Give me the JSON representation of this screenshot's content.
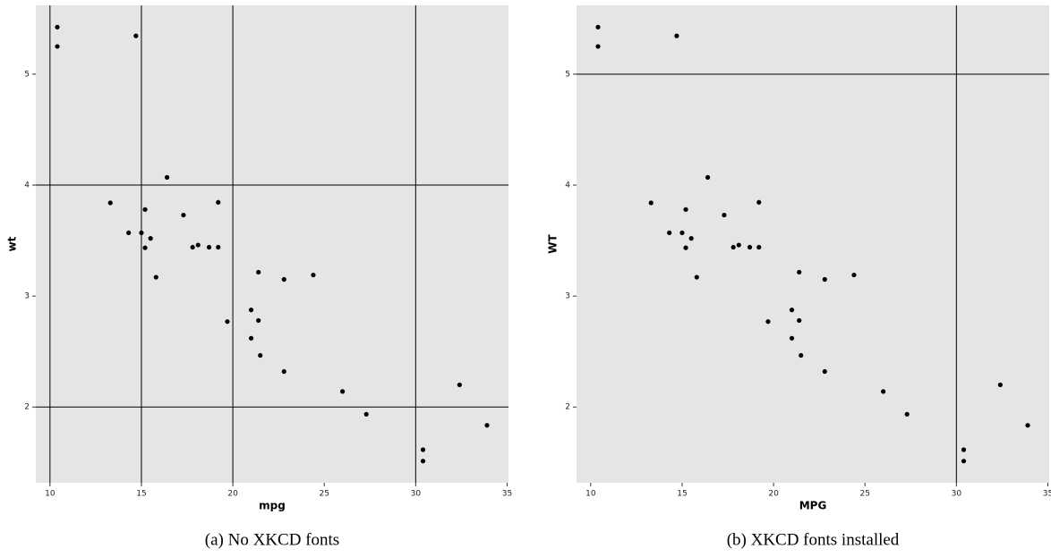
{
  "chart_data": [
    {
      "type": "scatter",
      "caption": "(a) No XKCD fonts",
      "xlabel": "mpg",
      "ylabel": "wt",
      "color": "#000000",
      "x": [
        21.0,
        21.0,
        22.8,
        21.4,
        18.7,
        18.1,
        14.3,
        24.4,
        22.8,
        19.2,
        17.8,
        16.4,
        17.3,
        15.2,
        10.4,
        10.4,
        14.7,
        32.4,
        30.4,
        33.9,
        21.5,
        15.5,
        15.2,
        13.3,
        19.2,
        27.3,
        26.0,
        30.4,
        15.8,
        19.7,
        15.0,
        21.4
      ],
      "values": [
        2.62,
        2.875,
        2.32,
        3.215,
        3.44,
        3.46,
        3.57,
        3.19,
        3.15,
        3.44,
        3.44,
        4.07,
        3.73,
        3.78,
        5.25,
        5.424,
        5.345,
        2.2,
        1.615,
        1.835,
        2.465,
        3.52,
        3.435,
        3.84,
        3.845,
        1.935,
        2.14,
        1.513,
        3.17,
        2.77,
        3.57,
        2.78
      ],
      "xlim": [
        9.225,
        35.075
      ],
      "ylim": [
        1.317,
        5.62
      ],
      "xticks": [
        10,
        15,
        20,
        25,
        30,
        35
      ],
      "yticks": [
        2,
        3,
        4,
        5
      ],
      "xgrid": [
        10,
        15,
        20,
        30
      ],
      "ygrid": [
        2,
        4
      ]
    },
    {
      "type": "scatter",
      "caption": "(b) XKCD fonts installed",
      "xlabel": "MPG",
      "ylabel": "WT",
      "color": "#000000",
      "x": [
        21.0,
        21.0,
        22.8,
        21.4,
        18.7,
        18.1,
        14.3,
        24.4,
        22.8,
        19.2,
        17.8,
        16.4,
        17.3,
        15.2,
        10.4,
        10.4,
        14.7,
        32.4,
        30.4,
        33.9,
        21.5,
        15.5,
        15.2,
        13.3,
        19.2,
        27.3,
        26.0,
        30.4,
        15.8,
        19.7,
        15.0,
        21.4
      ],
      "values": [
        2.62,
        2.875,
        2.32,
        3.215,
        3.44,
        3.46,
        3.57,
        3.19,
        3.15,
        3.44,
        3.44,
        4.07,
        3.73,
        3.78,
        5.25,
        5.424,
        5.345,
        2.2,
        1.615,
        1.835,
        2.465,
        3.52,
        3.435,
        3.84,
        3.845,
        1.935,
        2.14,
        1.513,
        3.17,
        2.77,
        3.57,
        2.78
      ],
      "xlim": [
        9.225,
        35.075
      ],
      "ylim": [
        1.317,
        5.62
      ],
      "xticks": [
        10,
        15,
        20,
        25,
        30,
        35
      ],
      "yticks": [
        2,
        3,
        4,
        5
      ],
      "xgrid": [
        30
      ],
      "ygrid": [
        5
      ]
    }
  ]
}
